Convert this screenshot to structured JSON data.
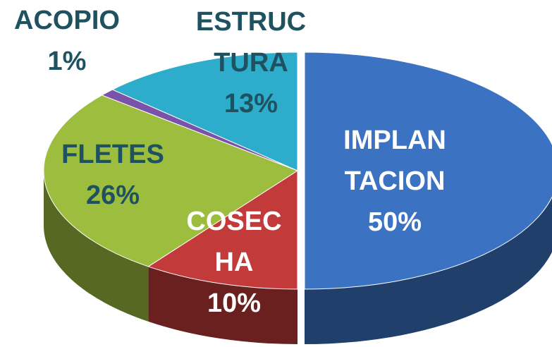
{
  "chart_data": {
    "type": "pie",
    "categories": [
      "IMPLANTACION",
      "COSECHA",
      "FLETES",
      "ACOPIO",
      "ESTRUCTURA"
    ],
    "values": [
      50,
      10,
      26,
      1,
      13
    ],
    "value_labels": [
      "50%",
      "10%",
      "26%",
      "1%",
      "13%"
    ],
    "colors": [
      "#3b72c2",
      "#c23a3a",
      "#9cbd3e",
      "#7a52a8",
      "#2eaccb"
    ]
  }
}
